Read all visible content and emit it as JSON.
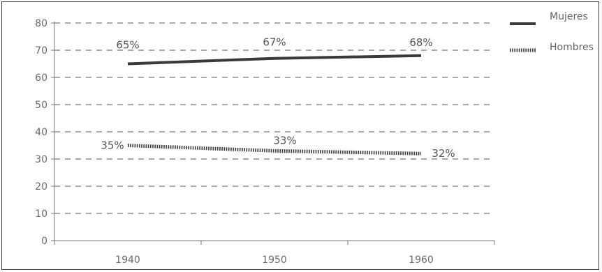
{
  "chart_data": {
    "type": "line",
    "title": "",
    "xlabel": "",
    "ylabel": "",
    "categories": [
      "1940",
      "1950",
      "1960"
    ],
    "x": [
      1940,
      1950,
      1960
    ],
    "ylim": [
      0,
      80
    ],
    "yticks": [
      0,
      10,
      20,
      30,
      40,
      50,
      60,
      70,
      80
    ],
    "grid": true,
    "legend_position": "right",
    "series": [
      {
        "name": "Mujeres",
        "style": "solid",
        "color": "#3a3a3a",
        "values": [
          65,
          67,
          68
        ],
        "labels": [
          "65%",
          "67%",
          "68%"
        ]
      },
      {
        "name": "Hombres",
        "style": "dotted",
        "color": "#3a3a3a",
        "values": [
          35,
          33,
          32
        ],
        "labels": [
          "35%",
          "33%",
          "32%"
        ]
      }
    ]
  }
}
